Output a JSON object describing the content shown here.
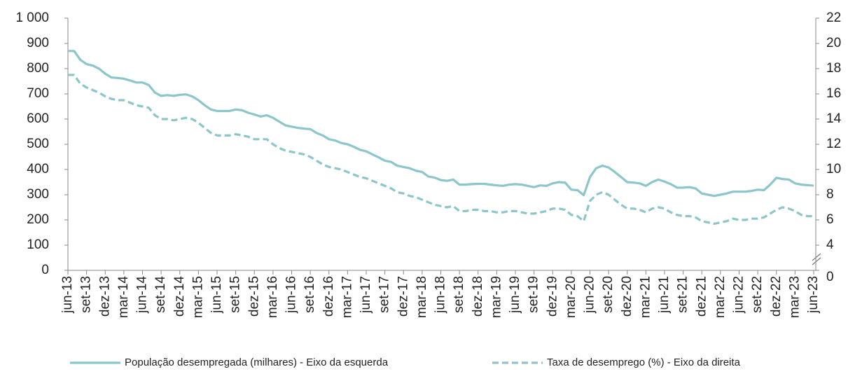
{
  "chart_data": {
    "type": "line",
    "categories": [
      "jun-13",
      null,
      null,
      "set-13",
      null,
      null,
      "dez-13",
      null,
      null,
      "mar-14",
      null,
      null,
      "jun-14",
      null,
      null,
      "set-14",
      null,
      null,
      "dez-14",
      null,
      null,
      "mar-15",
      null,
      null,
      "jun-15",
      null,
      null,
      "set-15",
      null,
      null,
      "dez-15",
      null,
      null,
      "mar-16",
      null,
      null,
      "jun-16",
      null,
      null,
      "set-16",
      null,
      null,
      "dez-16",
      null,
      null,
      "mar-17",
      null,
      null,
      "jun-17",
      null,
      null,
      "set-17",
      null,
      null,
      "dez-17",
      null,
      null,
      "mar-18",
      null,
      null,
      "jun-18",
      null,
      null,
      "set-18",
      null,
      null,
      "dez-18",
      null,
      null,
      "mar-19",
      null,
      null,
      "jun-19",
      null,
      null,
      "set-19",
      null,
      null,
      "dez-19",
      null,
      null,
      "mar-20",
      null,
      null,
      "jun-20",
      null,
      null,
      "set-20",
      null,
      null,
      "dez-20",
      null,
      null,
      "mar-21",
      null,
      null,
      "jun-21",
      null,
      null,
      "set-21",
      null,
      null,
      "dez-21",
      null,
      null,
      "mar-22",
      null,
      null,
      "jun-22",
      null,
      null,
      "set-22",
      null,
      null,
      "dez-22",
      null,
      null,
      "mar-23",
      null,
      null,
      "jun-23"
    ],
    "series": [
      {
        "name": "População desempregada (milhares) - Eixo da esquerda",
        "color": "#8cc6ca",
        "dashed": false,
        "values": [
          870,
          870,
          835,
          818,
          812,
          800,
          780,
          765,
          763,
          760,
          753,
          745,
          745,
          735,
          705,
          692,
          695,
          692,
          696,
          698,
          690,
          675,
          655,
          638,
          632,
          632,
          632,
          638,
          635,
          625,
          618,
          610,
          615,
          605,
          590,
          575,
          570,
          565,
          562,
          560,
          545,
          535,
          520,
          515,
          505,
          500,
          490,
          478,
          472,
          460,
          448,
          435,
          430,
          415,
          410,
          405,
          395,
          390,
          372,
          368,
          358,
          355,
          360,
          340,
          340,
          342,
          343,
          343,
          340,
          337,
          335,
          340,
          342,
          340,
          335,
          330,
          337,
          335,
          345,
          350,
          348,
          320,
          318,
          298,
          370,
          405,
          415,
          408,
          390,
          370,
          350,
          348,
          345,
          335,
          350,
          360,
          352,
          342,
          328,
          328,
          330,
          325,
          305,
          300,
          295,
          300,
          305,
          312,
          312,
          312,
          315,
          320,
          318,
          340,
          367,
          362,
          360,
          345,
          340,
          338,
          336
        ]
      },
      {
        "name": "Taxa de desemprego (%) - Eixo da direita",
        "color": "#8cc6ca",
        "dashed": true,
        "axis": "y2",
        "values": [
          17.5,
          17.5,
          16.8,
          16.5,
          16.3,
          16.1,
          15.8,
          15.6,
          15.5,
          15.5,
          15.3,
          15.1,
          15.0,
          14.9,
          14.3,
          14.0,
          14.0,
          13.9,
          14.0,
          14.1,
          14.0,
          13.7,
          13.3,
          12.9,
          12.7,
          12.7,
          12.7,
          12.8,
          12.7,
          12.6,
          12.4,
          12.4,
          12.4,
          12.0,
          11.7,
          11.5,
          11.4,
          11.3,
          11.2,
          11.0,
          10.7,
          10.4,
          10.2,
          10.1,
          10.0,
          9.8,
          9.6,
          9.4,
          9.3,
          9.1,
          8.9,
          8.7,
          8.5,
          8.2,
          8.1,
          7.9,
          7.8,
          7.6,
          7.4,
          7.2,
          7.1,
          7.0,
          7.1,
          6.7,
          6.7,
          6.8,
          6.8,
          6.7,
          6.7,
          6.6,
          6.6,
          6.7,
          6.7,
          6.6,
          6.5,
          6.5,
          6.6,
          6.7,
          6.9,
          6.9,
          6.8,
          6.4,
          6.3,
          5.9,
          7.5,
          8.0,
          8.2,
          8.0,
          7.6,
          7.2,
          6.9,
          6.9,
          6.8,
          6.6,
          6.9,
          7.0,
          6.9,
          6.6,
          6.4,
          6.3,
          6.3,
          6.2,
          5.9,
          5.8,
          5.7,
          5.8,
          5.9,
          6.1,
          6.0,
          6.0,
          6.1,
          6.1,
          6.2,
          6.5,
          6.8,
          7.0,
          6.9,
          6.7,
          6.4,
          6.3,
          6.3
        ]
      }
    ],
    "ylim": [
      0,
      1000
    ],
    "yticks": [
      0,
      100,
      200,
      300,
      400,
      500,
      600,
      700,
      800,
      900,
      {
        "value": 1000,
        "label": "1 000"
      }
    ],
    "y2lim": [
      0,
      22
    ],
    "y2ticks": [
      0,
      4,
      6,
      8,
      10,
      12,
      14,
      16,
      18,
      20,
      22
    ],
    "y2_break": true,
    "grid": false,
    "legend": "bottom"
  }
}
